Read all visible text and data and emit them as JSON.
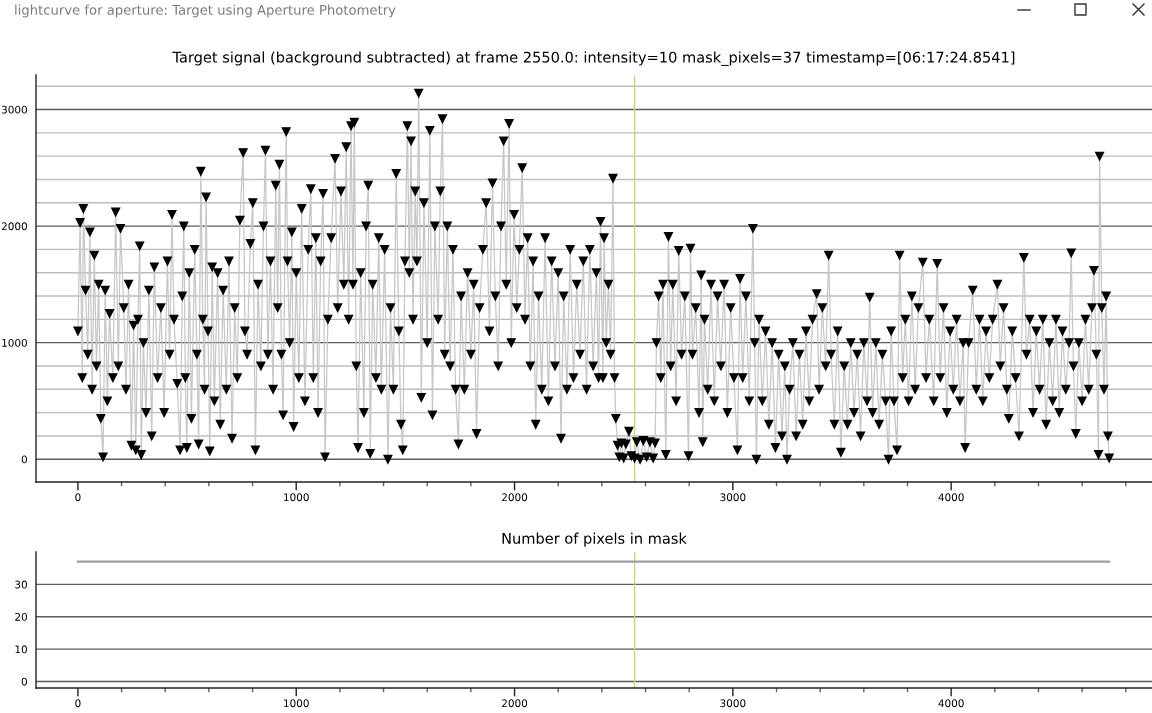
{
  "chart_data": [
    {
      "type": "line",
      "title": "Target signal (background subtracted) at frame 2550.0: intensity=10 mask_pixels=37 timestamp=[06:17:24.8541]",
      "annotations": [
        "lightcurve for aperture: Target using Aperture Photometry"
      ],
      "x": [
        0,
        10,
        20,
        25,
        35,
        45,
        55,
        65,
        75,
        85,
        95,
        105,
        115,
        125,
        135,
        145,
        160,
        173,
        185,
        195,
        210,
        220,
        232,
        245,
        255,
        265,
        275,
        283,
        290,
        300,
        312,
        325,
        338,
        350,
        365,
        380,
        395,
        410,
        420,
        431,
        440,
        455,
        468,
        478,
        485,
        492,
        499,
        510,
        520,
        535,
        545,
        553,
        563,
        572,
        580,
        587,
        596,
        604,
        615,
        625,
        640,
        652,
        665,
        680,
        692,
        706,
        718,
        730,
        742,
        757,
        765,
        775,
        790,
        801,
        813,
        825,
        838,
        850,
        859,
        870,
        882,
        894,
        906,
        915,
        923,
        932,
        940,
        954,
        960,
        970,
        980,
        988,
        1000,
        1012,
        1025,
        1040,
        1055,
        1067,
        1078,
        1090,
        1100,
        1112,
        1123,
        1132,
        1145,
        1160,
        1178,
        1190,
        1205,
        1218,
        1229,
        1240,
        1251,
        1260,
        1266,
        1275,
        1283,
        1295,
        1310,
        1320,
        1330,
        1339,
        1350,
        1365,
        1378,
        1390,
        1405,
        1420,
        1432,
        1445,
        1458,
        1470,
        1480,
        1488,
        1498,
        1509,
        1518,
        1526,
        1535,
        1545,
        1553,
        1561,
        1573,
        1585,
        1600,
        1612,
        1624,
        1635,
        1650,
        1660,
        1670,
        1680,
        1692,
        1705,
        1718,
        1730,
        1743,
        1755,
        1770,
        1785,
        1800,
        1813,
        1826,
        1840,
        1855,
        1870,
        1885,
        1899,
        1912,
        1925,
        1938,
        1950,
        1962,
        1975,
        1985,
        1998,
        2010,
        2022,
        2035,
        2048,
        2060,
        2072,
        2085,
        2097,
        2110,
        2125,
        2140,
        2155,
        2170,
        2185,
        2200,
        2213,
        2225,
        2240,
        2255,
        2270,
        2285,
        2300,
        2315,
        2330,
        2345,
        2360,
        2375,
        2385,
        2394,
        2405,
        2410,
        2420,
        2430,
        2440,
        2451,
        2458,
        2464,
        2472,
        2480,
        2490,
        2500,
        2510,
        2524,
        2535,
        2550,
        2560,
        2575,
        2590,
        2605,
        2620,
        2635,
        2644,
        2650,
        2660,
        2670,
        2680,
        2693,
        2705,
        2715,
        2725,
        2740,
        2752,
        2765,
        2780,
        2797,
        2806,
        2815,
        2830,
        2845,
        2855,
        2862,
        2870,
        2885,
        2900,
        2915,
        2930,
        2945,
        2960,
        2975,
        2990,
        3005,
        3021,
        3033,
        3045,
        3060,
        3075,
        3092,
        3100,
        3108,
        3120,
        3135,
        3150,
        3165,
        3180,
        3195,
        3210,
        3225,
        3238,
        3248,
        3260,
        3275,
        3290,
        3305,
        3320,
        3335,
        3350,
        3365,
        3384,
        3395,
        3410,
        3425,
        3439,
        3450,
        3465,
        3480,
        3495,
        3510,
        3525,
        3540,
        3555,
        3570,
        3585,
        3600,
        3615,
        3627,
        3640,
        3655,
        3670,
        3685,
        3700,
        3713,
        3725,
        3738,
        3752,
        3764,
        3778,
        3790,
        3805,
        3820,
        3835,
        3850,
        3870,
        3885,
        3900,
        3920,
        3936,
        3950,
        3965,
        3980,
        3995,
        4010,
        4025,
        4040,
        4055,
        4064,
        4080,
        4099,
        4115,
        4130,
        4145,
        4160,
        4175,
        4190,
        4212,
        4225,
        4240,
        4255,
        4264,
        4280,
        4295,
        4311,
        4333,
        4345,
        4360,
        4375,
        4390,
        4405,
        4420,
        4435,
        4450,
        4465,
        4480,
        4495,
        4510,
        4525,
        4540,
        4550,
        4560,
        4571,
        4585,
        4600,
        4615,
        4630,
        4645,
        4654,
        4665,
        4675,
        4680,
        4690,
        4700,
        4710,
        4718,
        4724
      ],
      "values": [
        1100,
        2030,
        700,
        2150,
        1450,
        900,
        1950,
        600,
        1750,
        800,
        1500,
        350,
        20,
        1450,
        500,
        1250,
        700,
        2120,
        800,
        1980,
        1300,
        600,
        1500,
        120,
        1150,
        80,
        1200,
        1830,
        40,
        1000,
        400,
        1450,
        200,
        1650,
        700,
        1300,
        400,
        1700,
        900,
        2100,
        1200,
        650,
        80,
        1400,
        2000,
        700,
        100,
        1600,
        350,
        1800,
        900,
        130,
        2470,
        1200,
        600,
        2250,
        1100,
        70,
        1650,
        500,
        1600,
        300,
        1450,
        600,
        1700,
        180,
        1300,
        700,
        2050,
        2630,
        1100,
        900,
        1850,
        2200,
        80,
        1500,
        800,
        2000,
        2650,
        900,
        1700,
        600,
        2350,
        1300,
        2530,
        900,
        380,
        2810,
        1700,
        1000,
        1950,
        280,
        1600,
        700,
        2150,
        500,
        1800,
        2320,
        700,
        1900,
        400,
        1700,
        2280,
        20,
        1200,
        1900,
        2580,
        1300,
        2300,
        1500,
        2680,
        1200,
        2860,
        1500,
        2890,
        800,
        100,
        1600,
        400,
        2000,
        2350,
        50,
        1500,
        700,
        1900,
        600,
        1800,
        0,
        1300,
        600,
        2450,
        1100,
        300,
        80,
        1700,
        2860,
        1600,
        2730,
        1200,
        2300,
        1700,
        3140,
        530,
        2200,
        1000,
        2820,
        380,
        2000,
        1200,
        2300,
        2920,
        900,
        2000,
        800,
        1800,
        600,
        130,
        1400,
        600,
        1600,
        900,
        1500,
        220,
        1300,
        1800,
        2200,
        1100,
        2370,
        1400,
        800,
        2000,
        2730,
        1500,
        2880,
        1000,
        2100,
        1300,
        1800,
        2500,
        1200,
        1900,
        800,
        1700,
        300,
        1400,
        600,
        1900,
        500,
        1700,
        800,
        1600,
        180,
        1400,
        600,
        1800,
        700,
        1500,
        900,
        1700,
        600,
        1800,
        800,
        1600,
        700,
        2040,
        700,
        1900,
        1000,
        1500,
        900,
        2410,
        700,
        350,
        120,
        20,
        140,
        10,
        130,
        240,
        30,
        10,
        150,
        0,
        160,
        20,
        150,
        10,
        140,
        1000,
        1400,
        700,
        1500,
        40,
        1910,
        800,
        1500,
        500,
        1790,
        900,
        1400,
        30,
        1810,
        900,
        1300,
        400,
        1580,
        150,
        1200,
        600,
        1500,
        500,
        1400,
        800,
        1500,
        400,
        1300,
        700,
        80,
        1550,
        700,
        1400,
        500,
        1980,
        1000,
        0,
        1200,
        500,
        1100,
        300,
        1000,
        100,
        900,
        200,
        800,
        0,
        600,
        1000,
        200,
        900,
        300,
        1100,
        500,
        1200,
        1420,
        600,
        1300,
        800,
        1750,
        900,
        300,
        1100,
        60,
        800,
        300,
        1000,
        400,
        900,
        200,
        1000,
        500,
        1390,
        400,
        1000,
        300,
        900,
        500,
        0,
        1100,
        500,
        80,
        1750,
        700,
        1200,
        500,
        1400,
        600,
        1300,
        1690,
        700,
        1200,
        500,
        1680,
        700,
        1300,
        400,
        1100,
        600,
        1200,
        500,
        1000,
        100,
        1000,
        1450,
        600,
        1200,
        500,
        1100,
        700,
        1200,
        1500,
        800,
        1300,
        600,
        350,
        1100,
        700,
        200,
        1730,
        900,
        1200,
        400,
        1100,
        600,
        1200,
        300,
        1000,
        500,
        1200,
        400,
        1100,
        600,
        1000,
        1770,
        800,
        220,
        1000,
        500,
        1200,
        600,
        1300,
        1620,
        900,
        40,
        2600,
        1300,
        600,
        1400,
        200,
        10
      ],
      "color": "#000000",
      "marker": "triangle",
      "line_style": "solid",
      "xlim": [
        -192,
        4920
      ],
      "ylim": [
        -195,
        3296
      ],
      "xticks": [
        0,
        {
          "value": 200,
          "label": null
        },
        {
          "value": 400,
          "label": null
        },
        {
          "value": 600,
          "label": null
        },
        {
          "value": 800,
          "label": null
        },
        1000,
        {
          "value": 1200,
          "label": null
        },
        {
          "value": 1400,
          "label": null
        },
        {
          "value": 1600,
          "label": null
        },
        {
          "value": 1800,
          "label": null
        },
        2000,
        {
          "value": 2200,
          "label": null
        },
        {
          "value": 2400,
          "label": null
        },
        {
          "value": 2600,
          "label": null
        },
        {
          "value": 2800,
          "label": null
        },
        3000,
        {
          "value": 3200,
          "label": null
        },
        {
          "value": 3400,
          "label": null
        },
        {
          "value": 3600,
          "label": null
        },
        {
          "value": 3800,
          "label": null
        },
        4000,
        {
          "value": 4200,
          "label": null
        },
        {
          "value": 4400,
          "label": null
        },
        {
          "value": 4600,
          "label": null
        },
        {
          "value": 4800,
          "label": null
        }
      ],
      "yticks": [
        0,
        {
          "value": 200,
          "label": null
        },
        {
          "value": 400,
          "label": null
        },
        {
          "value": 600,
          "label": null
        },
        {
          "value": 800,
          "label": null
        },
        1000,
        {
          "value": 1200,
          "label": null
        },
        {
          "value": 1400,
          "label": null
        },
        {
          "value": 1600,
          "label": null
        },
        {
          "value": 1800,
          "label": null
        },
        2000,
        {
          "value": 2200,
          "label": null
        },
        {
          "value": 2400,
          "label": null
        },
        {
          "value": 2600,
          "label": null
        },
        {
          "value": 2800,
          "label": null
        },
        3000,
        {
          "value": 3200,
          "label": null
        }
      ],
      "grid": "y",
      "ref_lines": [
        {
          "axis": "x",
          "value": 2550,
          "color": "#d0d08c"
        }
      ]
    },
    {
      "type": "line",
      "title": "Number of pixels in mask",
      "x": [
        0,
        4724
      ],
      "values": [
        37,
        37
      ],
      "color": "#a0a0a0",
      "xlim": [
        -192,
        4920
      ],
      "ylim": [
        -2,
        40
      ],
      "xticks": [
        0,
        {
          "value": 200,
          "label": null
        },
        {
          "value": 400,
          "label": null
        },
        {
          "value": 600,
          "label": null
        },
        {
          "value": 800,
          "label": null
        },
        1000,
        {
          "value": 1200,
          "label": null
        },
        {
          "value": 1400,
          "label": null
        },
        {
          "value": 1600,
          "label": null
        },
        {
          "value": 1800,
          "label": null
        },
        2000,
        {
          "value": 2200,
          "label": null
        },
        {
          "value": 2400,
          "label": null
        },
        {
          "value": 2600,
          "label": null
        },
        {
          "value": 2800,
          "label": null
        },
        3000,
        {
          "value": 3200,
          "label": null
        },
        {
          "value": 3400,
          "label": null
        },
        {
          "value": 3600,
          "label": null
        },
        {
          "value": 3800,
          "label": null
        },
        4000,
        {
          "value": 4200,
          "label": null
        },
        {
          "value": 4400,
          "label": null
        },
        {
          "value": 4600,
          "label": null
        },
        {
          "value": 4800,
          "label": null
        }
      ],
      "yticks": [
        0,
        10,
        20,
        30
      ],
      "grid": "y",
      "ref_lines": [
        {
          "axis": "x",
          "value": 2550,
          "color": "#d0d08c"
        }
      ]
    }
  ]
}
